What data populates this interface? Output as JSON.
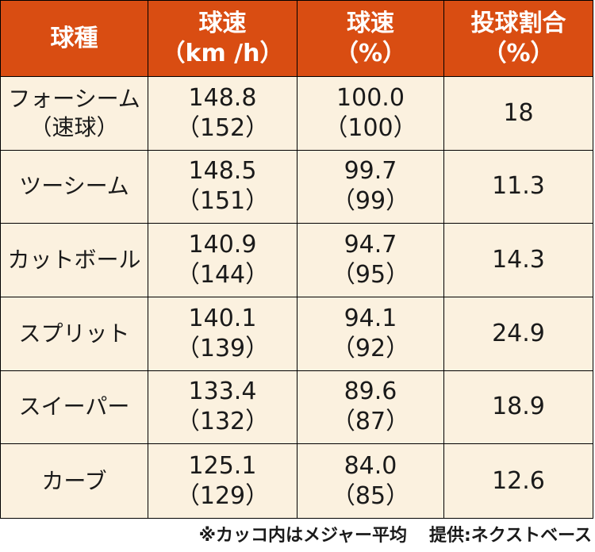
{
  "headers": [
    {
      "line1": "球種",
      "line2": ""
    },
    {
      "line1": "球速",
      "line2": "（km /h）"
    },
    {
      "line1": "球速",
      "line2": "（%）"
    },
    {
      "line1": "投球割合",
      "line2": "（%）"
    }
  ],
  "rows": [
    {
      "pitch": "フォーシーム",
      "pitch_sub": "（速球）",
      "kmh": "148.8",
      "kmh_mlb": "（152）",
      "pct": "100.0",
      "pct_mlb": "（100）",
      "usage": "18"
    },
    {
      "pitch": "ツーシーム",
      "pitch_sub": "",
      "kmh": "148.5",
      "kmh_mlb": "（151）",
      "pct": "99.7",
      "pct_mlb": "（99）",
      "usage": "11.3"
    },
    {
      "pitch": "カットボール",
      "pitch_sub": "",
      "kmh": "140.9",
      "kmh_mlb": "（144）",
      "pct": "94.7",
      "pct_mlb": "（95）",
      "usage": "14.3"
    },
    {
      "pitch": "スプリット",
      "pitch_sub": "",
      "kmh": "140.1",
      "kmh_mlb": "（139）",
      "pct": "94.1",
      "pct_mlb": "（92）",
      "usage": "24.9"
    },
    {
      "pitch": "スイーパー",
      "pitch_sub": "",
      "kmh": "133.4",
      "kmh_mlb": "（132）",
      "pct": "89.6",
      "pct_mlb": "（87）",
      "usage": "18.9"
    },
    {
      "pitch": "カーブ",
      "pitch_sub": "",
      "kmh": "125.1",
      "kmh_mlb": "（129）",
      "pct": "84.0",
      "pct_mlb": "（85）",
      "usage": "12.6"
    }
  ],
  "footer": {
    "note": "※カッコ内はメジャー平均",
    "source": "提供:ネクストベース"
  },
  "colors": {
    "header_bg": "#d94d12",
    "header_text": "#ffffff",
    "body_bg": "#fbf1df",
    "border": "#000000"
  }
}
